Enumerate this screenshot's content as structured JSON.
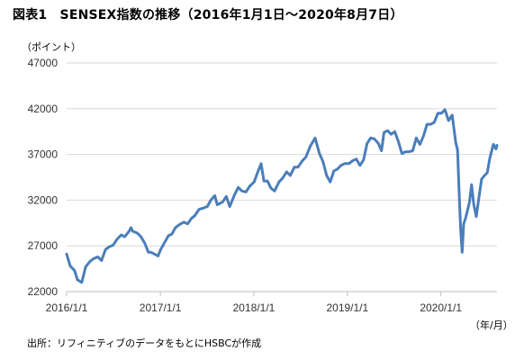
{
  "chart_data": {
    "type": "line",
    "title": "図表1　SENSEX指数の推移（2016年1月1日～2020年8月7日）",
    "ylabel": "（ポイント）",
    "xlabel": "（年/月）",
    "source": "出所：リフィニティブのデータをもとにHSBCが作成",
    "ylim": [
      22000,
      47000
    ],
    "yticks": [
      "47000",
      "42000",
      "37000",
      "32000",
      "27000",
      "22000"
    ],
    "xticks": [
      "2016/1/1",
      "2017/1/1",
      "2018/1/1",
      "2019/1/1",
      "2020/1/1"
    ],
    "xlim": [
      "2016-01-01",
      "2020-08-07"
    ],
    "grid": "horizontal",
    "line_color": "#4a7ebb",
    "series": [
      {
        "name": "",
        "x": [
          "2016-01-01",
          "2016-01-15",
          "2016-02-01",
          "2016-02-12",
          "2016-02-29",
          "2016-03-15",
          "2016-04-01",
          "2016-04-15",
          "2016-05-02",
          "2016-05-16",
          "2016-06-01",
          "2016-06-15",
          "2016-07-01",
          "2016-07-15",
          "2016-08-01",
          "2016-08-15",
          "2016-09-01",
          "2016-09-08",
          "2016-09-15",
          "2016-10-03",
          "2016-10-17",
          "2016-11-01",
          "2016-11-15",
          "2016-11-25",
          "2016-12-09",
          "2016-12-23",
          "2017-01-02",
          "2017-01-16",
          "2017-02-01",
          "2017-02-15",
          "2017-03-01",
          "2017-03-15",
          "2017-04-03",
          "2017-04-17",
          "2017-05-02",
          "2017-05-15",
          "2017-06-01",
          "2017-06-15",
          "2017-07-03",
          "2017-07-17",
          "2017-08-01",
          "2017-08-11",
          "2017-09-01",
          "2017-09-15",
          "2017-09-29",
          "2017-10-16",
          "2017-11-01",
          "2017-11-15",
          "2017-12-01",
          "2017-12-15",
          "2018-01-02",
          "2018-01-15",
          "2018-01-29",
          "2018-02-09",
          "2018-02-23",
          "2018-03-09",
          "2018-03-23",
          "2018-04-09",
          "2018-04-23",
          "2018-05-09",
          "2018-05-23",
          "2018-06-08",
          "2018-06-22",
          "2018-07-09",
          "2018-07-23",
          "2018-08-09",
          "2018-08-28",
          "2018-09-14",
          "2018-09-28",
          "2018-10-12",
          "2018-10-26",
          "2018-11-09",
          "2018-11-23",
          "2018-12-07",
          "2018-12-21",
          "2019-01-07",
          "2019-01-21",
          "2019-02-05",
          "2019-02-19",
          "2019-03-05",
          "2019-03-19",
          "2019-04-02",
          "2019-04-16",
          "2019-05-02",
          "2019-05-14",
          "2019-05-24",
          "2019-06-07",
          "2019-06-21",
          "2019-07-05",
          "2019-07-19",
          "2019-08-02",
          "2019-08-16",
          "2019-08-30",
          "2019-09-13",
          "2019-09-27",
          "2019-10-11",
          "2019-10-25",
          "2019-11-08",
          "2019-11-22",
          "2019-12-06",
          "2019-12-20",
          "2020-01-03",
          "2020-01-17",
          "2020-01-31",
          "2020-02-14",
          "2020-02-28",
          "2020-03-06",
          "2020-03-12",
          "2020-03-18",
          "2020-03-24",
          "2020-03-30",
          "2020-04-07",
          "2020-04-21",
          "2020-04-30",
          "2020-05-08",
          "2020-05-18",
          "2020-05-29",
          "2020-06-08",
          "2020-06-19",
          "2020-06-30",
          "2020-07-10",
          "2020-07-24",
          "2020-08-03",
          "2020-08-07"
        ],
        "values": [
          26100,
          24800,
          24300,
          23300,
          23000,
          24700,
          25300,
          25600,
          25800,
          25400,
          26600,
          26900,
          27100,
          27700,
          28200,
          28000,
          28600,
          29000,
          28600,
          28400,
          28000,
          27300,
          26300,
          26300,
          26100,
          25900,
          26600,
          27300,
          28100,
          28300,
          29000,
          29300,
          29600,
          29400,
          30000,
          30300,
          31000,
          31100,
          31300,
          32000,
          32500,
          31500,
          31800,
          32400,
          31300,
          32500,
          33400,
          33000,
          32900,
          33500,
          34000,
          35000,
          36000,
          34100,
          34100,
          33300,
          33000,
          34000,
          34400,
          35100,
          34700,
          35600,
          35600,
          36300,
          36700,
          37900,
          38800,
          37100,
          36200,
          34700,
          34000,
          35200,
          35400,
          35800,
          36000,
          36000,
          36300,
          36500,
          35800,
          36400,
          38200,
          38800,
          38700,
          38200,
          37400,
          39400,
          39600,
          39200,
          39500,
          38400,
          37100,
          37300,
          37300,
          37400,
          38800,
          38100,
          39000,
          40300,
          40300,
          40500,
          41500,
          41500,
          41900,
          40700,
          41300,
          38300,
          37500,
          33000,
          28900,
          26300,
          29400,
          30100,
          31700,
          33700,
          31600,
          30200,
          32400,
          34300,
          34700,
          35000,
          36600,
          38100,
          37600,
          38000
        ]
      }
    ]
  }
}
